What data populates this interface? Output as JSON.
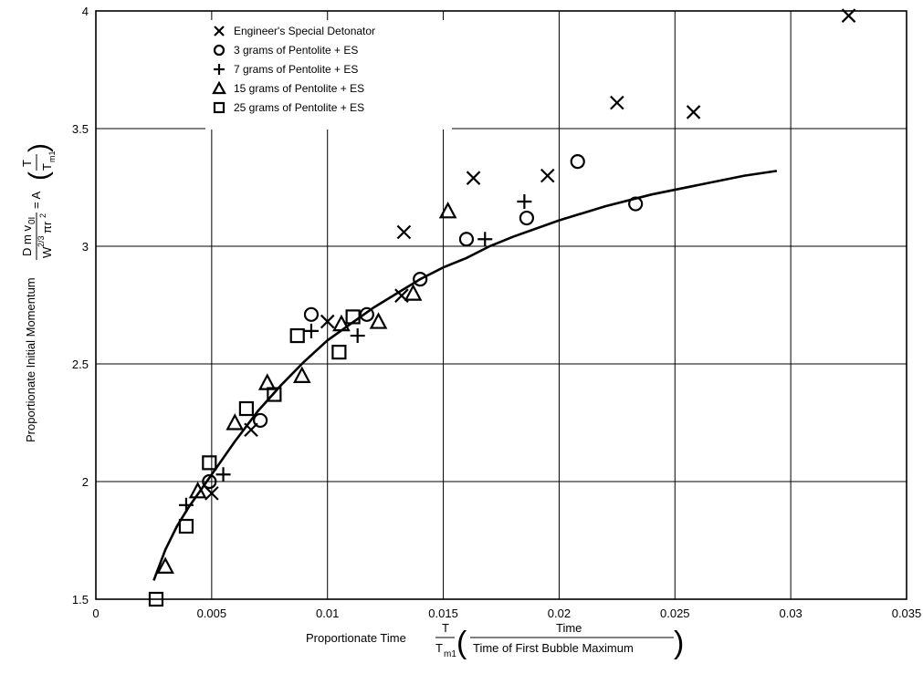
{
  "chart_data": {
    "type": "scatter",
    "title": "",
    "xlabel": {
      "main": "Proportionate Time",
      "frac_num": "T",
      "frac_den": "T",
      "frac_den_sub": "m1",
      "paren_num": "Time",
      "paren_den": "Time of First Bubble Maximum"
    },
    "ylabel": {
      "main": "Proportionate Initial Momentum",
      "frac_num": "D m v",
      "frac_num_sub": "0I",
      "frac_den": "W",
      "frac_den_sup": "2/3",
      "frac_den_rest": "πr",
      "frac_den_rest_sup": "2",
      "equals": "= A",
      "paren_num": "T",
      "paren_den": "T",
      "paren_den_sub": "m1"
    },
    "xlim": [
      0,
      0.035
    ],
    "ylim": [
      1.5,
      4
    ],
    "xticks": [
      0,
      0.005,
      0.01,
      0.015,
      0.02,
      0.025,
      0.03,
      0.035
    ],
    "xtick_labels": [
      "0",
      "0.005",
      "0.01",
      "0.015",
      "0.02",
      "0.025",
      "0.03",
      "0.035"
    ],
    "yticks": [
      1.5,
      2,
      2.5,
      3,
      3.5,
      4
    ],
    "ytick_labels": [
      "1.5",
      "2",
      "2.5",
      "3",
      "3.5",
      "4"
    ],
    "grid": true,
    "legend_position": "top-left",
    "series": [
      {
        "name": "Engineer's Special Detonator",
        "marker": "x",
        "x": [
          0.005,
          0.0067,
          0.01,
          0.0132,
          0.0133,
          0.0163,
          0.0195,
          0.0225,
          0.0258,
          0.0325
        ],
        "y": [
          1.95,
          2.22,
          2.68,
          2.79,
          3.06,
          3.29,
          3.3,
          3.61,
          3.57,
          3.98
        ]
      },
      {
        "name": "3 grams of Pentolite + ES",
        "marker": "circle",
        "x": [
          0.0049,
          0.0071,
          0.0093,
          0.0117,
          0.014,
          0.016,
          0.0186,
          0.0208,
          0.0233
        ],
        "y": [
          2.0,
          2.26,
          2.71,
          2.71,
          2.86,
          3.03,
          3.12,
          3.36,
          3.18
        ]
      },
      {
        "name": "7 grams of Pentolite + ES",
        "marker": "plus",
        "x": [
          0.0039,
          0.0055,
          0.0093,
          0.0113,
          0.0168,
          0.0185
        ],
        "y": [
          1.9,
          2.03,
          2.64,
          2.62,
          3.03,
          3.19
        ]
      },
      {
        "name": "15 grams of Pentolite + ES",
        "marker": "triangle",
        "x": [
          0.003,
          0.0044,
          0.006,
          0.0074,
          0.0089,
          0.0106,
          0.0122,
          0.0137,
          0.0152
        ],
        "y": [
          1.64,
          1.96,
          2.25,
          2.42,
          2.45,
          2.67,
          2.68,
          2.8,
          3.15
        ]
      },
      {
        "name": "25 grams of Pentolite + ES",
        "marker": "square",
        "x": [
          0.0026,
          0.0039,
          0.0049,
          0.0065,
          0.0077,
          0.0087,
          0.0105,
          0.0111
        ],
        "y": [
          1.5,
          1.81,
          2.08,
          2.31,
          2.37,
          2.62,
          2.55,
          2.7
        ]
      }
    ],
    "fit_curve": {
      "x": [
        0.0025,
        0.003,
        0.0035,
        0.004,
        0.005,
        0.006,
        0.007,
        0.008,
        0.009,
        0.01,
        0.011,
        0.012,
        0.013,
        0.014,
        0.015,
        0.016,
        0.017,
        0.018,
        0.02,
        0.022,
        0.024,
        0.026,
        0.028,
        0.0294
      ],
      "y": [
        1.58,
        1.71,
        1.81,
        1.89,
        2.03,
        2.17,
        2.3,
        2.41,
        2.51,
        2.6,
        2.67,
        2.74,
        2.8,
        2.86,
        2.91,
        2.95,
        3.0,
        3.04,
        3.11,
        3.17,
        3.22,
        3.26,
        3.3,
        3.32
      ]
    }
  }
}
